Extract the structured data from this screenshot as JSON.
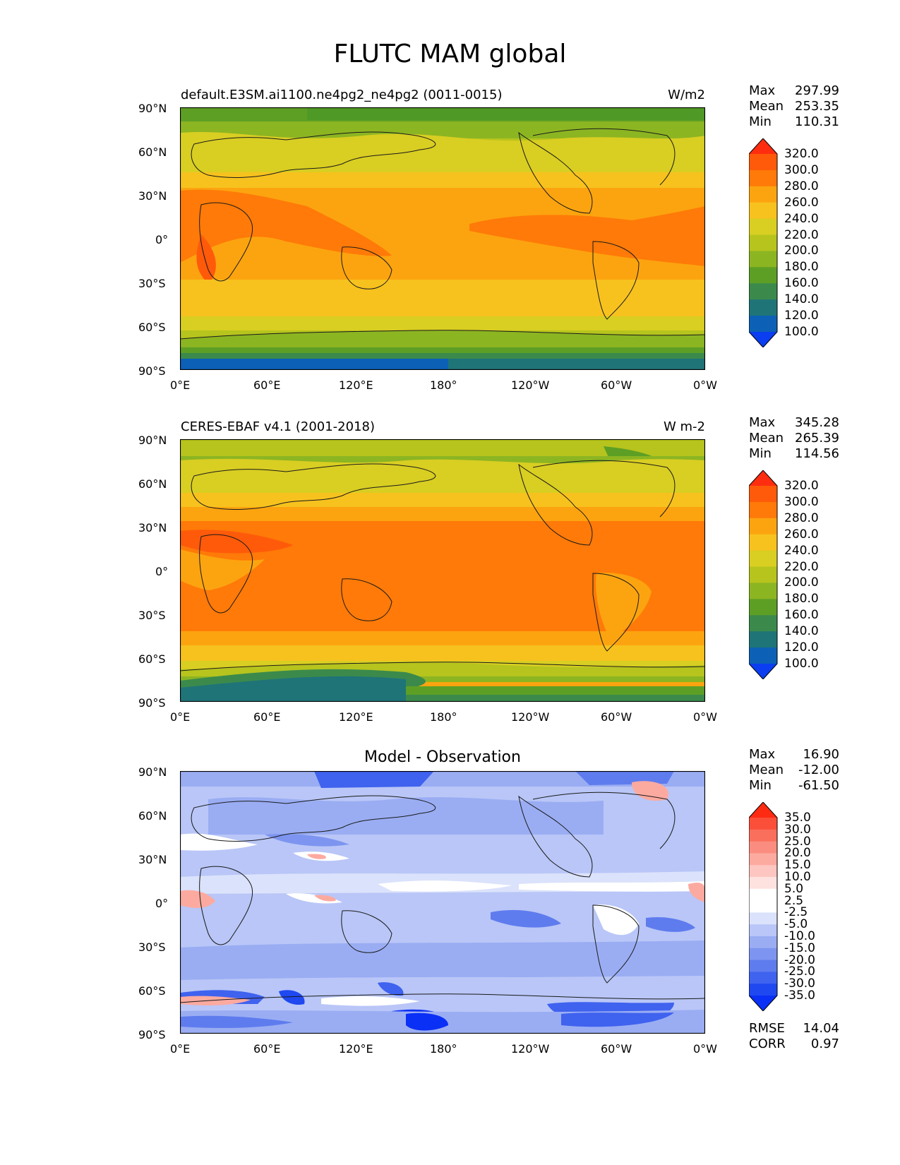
{
  "figure_title": "FLUTC MAM global",
  "lat_ticks": [
    "90°N",
    "60°N",
    "30°N",
    "0°",
    "30°S",
    "60°S",
    "90°S"
  ],
  "lon_ticks": [
    "0°E",
    "60°E",
    "120°E",
    "180°",
    "120°W",
    "60°W",
    "0°W"
  ],
  "panels": [
    {
      "left_title": "default.E3SM.ai1100.ne4pg2_ne4pg2 (0011-0015)",
      "right_title": "W/m2",
      "center_title": "",
      "stats": [
        {
          "label": "Max",
          "value": "297.99"
        },
        {
          "label": "Mean",
          "value": "253.35"
        },
        {
          "label": "Min",
          "value": "110.31"
        }
      ],
      "colorbar_labels": [
        "320.0",
        "300.0",
        "280.0",
        "260.0",
        "240.0",
        "220.0",
        "200.0",
        "180.0",
        "160.0",
        "140.0",
        "120.0",
        "100.0"
      ],
      "colorbar_colors": [
        "#ff2d10",
        "#ff5a0a",
        "#ff7a08",
        "#fca40f",
        "#f7c21e",
        "#d9ce22",
        "#b6c41d",
        "#8cb522",
        "#5d9f25",
        "#3b8a4c",
        "#1f7478",
        "#0c61b6",
        "#0a3ef0"
      ],
      "footer": []
    },
    {
      "left_title": "CERES-EBAF v4.1 (2001-2018)",
      "right_title": "W m-2",
      "center_title": "",
      "stats": [
        {
          "label": "Max",
          "value": "345.28"
        },
        {
          "label": "Mean",
          "value": "265.39"
        },
        {
          "label": "Min",
          "value": "114.56"
        }
      ],
      "colorbar_labels": [
        "320.0",
        "300.0",
        "280.0",
        "260.0",
        "240.0",
        "220.0",
        "200.0",
        "180.0",
        "160.0",
        "140.0",
        "120.0",
        "100.0"
      ],
      "colorbar_colors": [
        "#ff2d10",
        "#ff5a0a",
        "#ff7a08",
        "#fca40f",
        "#f7c21e",
        "#d9ce22",
        "#b6c41d",
        "#8cb522",
        "#5d9f25",
        "#3b8a4c",
        "#1f7478",
        "#0c61b6",
        "#0a3ef0"
      ],
      "footer": []
    },
    {
      "left_title": "",
      "right_title": "",
      "center_title": "Model - Observation",
      "stats": [
        {
          "label": "Max",
          "value": "16.90"
        },
        {
          "label": "Mean",
          "value": "-12.00"
        },
        {
          "label": "Min",
          "value": "-61.50"
        }
      ],
      "colorbar_labels": [
        "35.0",
        "30.0",
        "25.0",
        "20.0",
        "15.0",
        "10.0",
        "5.0",
        "2.5",
        "-2.5",
        "-5.0",
        "-10.0",
        "-15.0",
        "-20.0",
        "-25.0",
        "-30.0",
        "-35.0"
      ],
      "colorbar_colors": [
        "#ff2a12",
        "#fb4f3a",
        "#fa6e5c",
        "#fb8d80",
        "#fcaaa0",
        "#fdc6c0",
        "#fde2df",
        "#ffffff",
        "#ffffff",
        "#dbe2fb",
        "#b9c6f7",
        "#9aadf3",
        "#7d95f0",
        "#5f7cee",
        "#3f62ef",
        "#1f48f0",
        "#0a2ff5"
      ],
      "footer": [
        {
          "label": "RMSE",
          "value": "14.04"
        },
        {
          "label": "CORR",
          "value": "0.97"
        }
      ]
    }
  ]
}
